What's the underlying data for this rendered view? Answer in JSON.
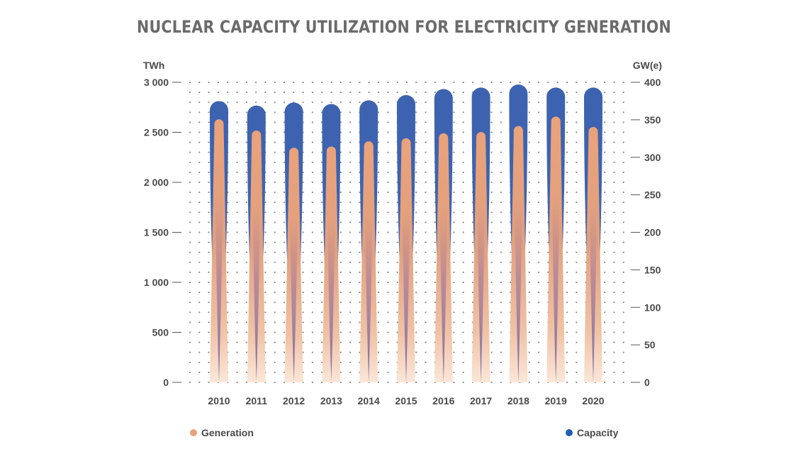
{
  "chart_data": {
    "type": "bar",
    "title": "NUCLEAR CAPACITY UTILIZATION FOR ELECTRICITY GENERATION",
    "categories": [
      "2010",
      "2011",
      "2012",
      "2013",
      "2014",
      "2015",
      "2016",
      "2017",
      "2018",
      "2019",
      "2020"
    ],
    "y_left": {
      "unit": "TWh",
      "range": [
        0,
        3000
      ],
      "ticks": [
        {
          "v": 0,
          "label": "0"
        },
        {
          "v": 500,
          "label": "500"
        },
        {
          "v": 1000,
          "label": "1 000"
        },
        {
          "v": 1500,
          "label": "1 500"
        },
        {
          "v": 2000,
          "label": "2 000"
        },
        {
          "v": 2500,
          "label": "2 500"
        },
        {
          "v": 3000,
          "label": "3 000"
        }
      ]
    },
    "y_right": {
      "unit": "GW(e)",
      "range": [
        0,
        400
      ],
      "ticks": [
        {
          "v": 0,
          "label": "0"
        },
        {
          "v": 50,
          "label": "50"
        },
        {
          "v": 100,
          "label": "100"
        },
        {
          "v": 150,
          "label": "150"
        },
        {
          "v": 200,
          "label": "200"
        },
        {
          "v": 250,
          "label": "250"
        },
        {
          "v": 300,
          "label": "300"
        },
        {
          "v": 350,
          "label": "350"
        },
        {
          "v": 400,
          "label": "400"
        }
      ]
    },
    "series": [
      {
        "name": "Generation",
        "axis": "left",
        "color": "#e8a27a",
        "values": [
          2630,
          2518,
          2346,
          2358,
          2410,
          2441,
          2490,
          2503,
          2563,
          2657,
          2553
        ]
      },
      {
        "name": "Capacity",
        "axis": "right",
        "color": "#3d63b0",
        "values": [
          375,
          369,
          373,
          371,
          376,
          383,
          391,
          393,
          397,
          393,
          393
        ]
      }
    ],
    "grid": "dotted",
    "legend": "bottom"
  }
}
